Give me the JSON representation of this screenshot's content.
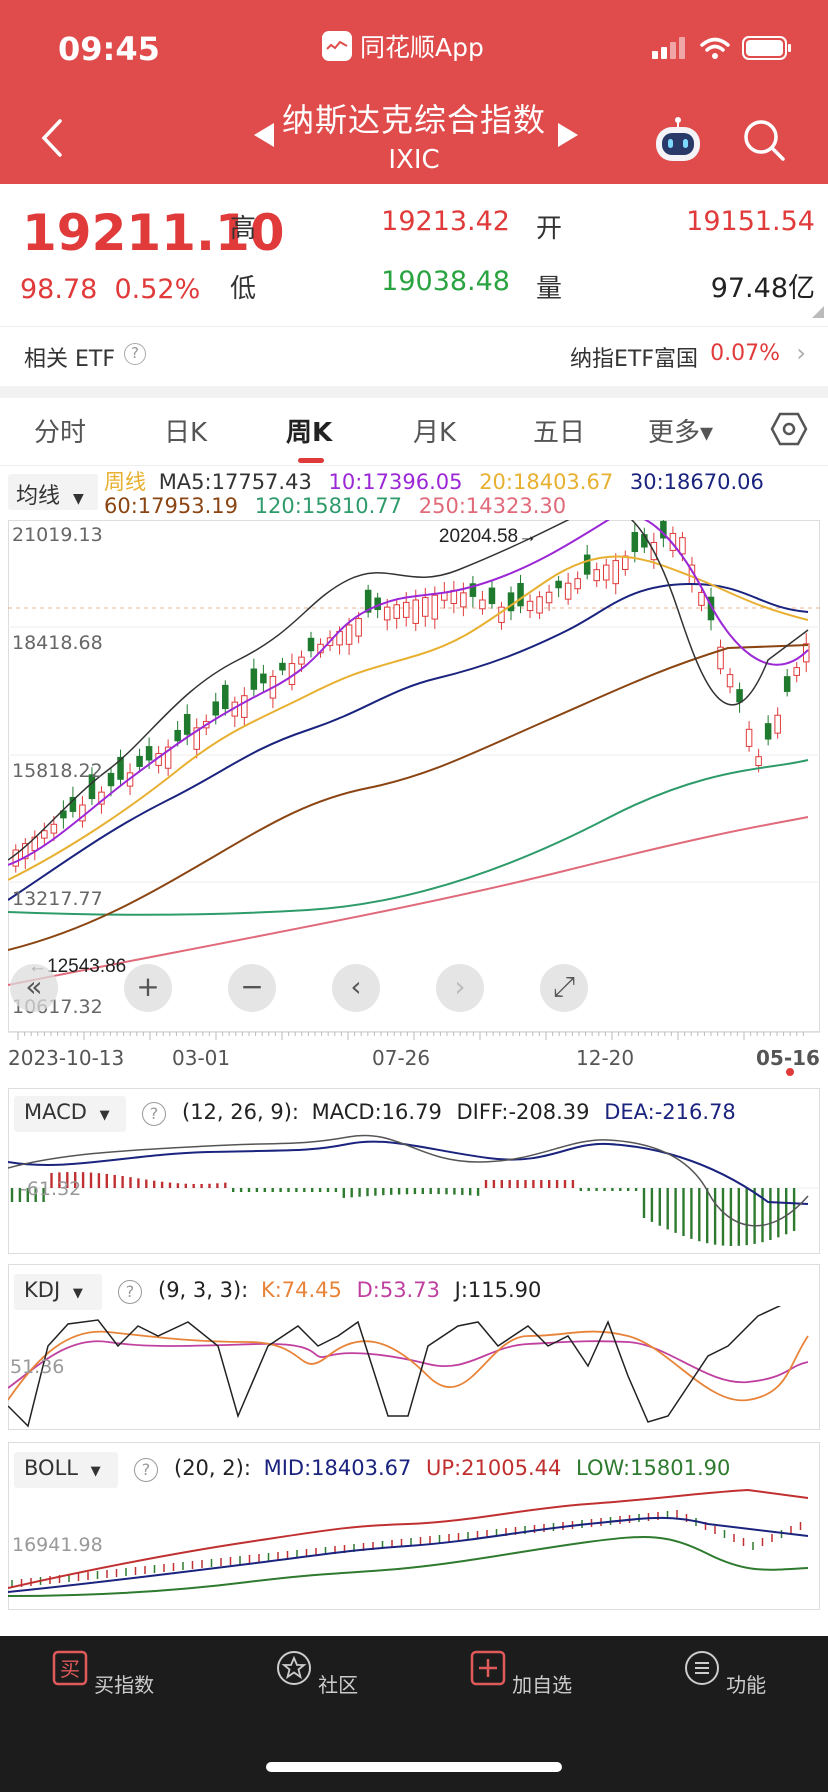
{
  "status": {
    "time": "09:45",
    "source_app": "同花顺App"
  },
  "header": {
    "title": "纳斯达克综合指数",
    "code": "IXIC"
  },
  "quote": {
    "price": "19211.10",
    "change": "98.78",
    "change_pct": "0.52%",
    "high_label": "高",
    "high": "19213.42",
    "low_label": "低",
    "low": "19038.48",
    "open_label": "开",
    "open": "19151.54",
    "volume_label": "量",
    "volume": "97.48亿"
  },
  "etf": {
    "label": "相关 ETF",
    "help": "?",
    "name": "纳指ETF富国",
    "pct": "0.07%"
  },
  "tabs": [
    {
      "label": "分时",
      "active": false
    },
    {
      "label": "日K",
      "active": false
    },
    {
      "label": "周K",
      "active": true
    },
    {
      "label": "月K",
      "active": false
    },
    {
      "label": "五日",
      "active": false
    },
    {
      "label": "更多▾",
      "active": false
    }
  ],
  "ma_legend": {
    "selector": "均线",
    "period": "周线",
    "ma5": "MA5:17757.43",
    "ma10": "10:17396.05",
    "ma20": "20:18403.67",
    "ma30": "30:18670.06",
    "ma60": "60:17953.19",
    "ma120": "120:15810.77",
    "ma250": "250:14323.30"
  },
  "kline": {
    "y_labels": [
      "21019.13",
      "18418.68",
      "15818.22",
      "13217.77",
      "10617.32"
    ],
    "x_labels": [
      "2023-10-13",
      "03-01",
      "07-26",
      "12-20",
      "05-16"
    ],
    "max_marker": "20204.58→",
    "min_marker": "←12543.86",
    "y_range": [
      10617.32,
      21019.13
    ],
    "colors": {
      "up": "#e03a3a",
      "down": "#1f7a2e",
      "ma5": "#333333",
      "ma10": "#9b27d6",
      "ma20": "#e8b030",
      "ma30": "#1a237e",
      "ma60": "#8b4513",
      "ma120": "#2e9b6a",
      "ma250": "#e06a7a"
    },
    "controls": [
      "«",
      "+",
      "−",
      "‹",
      "›",
      "⤢"
    ]
  },
  "macd": {
    "selector": "MACD",
    "help": "?",
    "params": "(12, 26, 9):",
    "macd": "MACD:16.79",
    "diff": "DIFF:-208.39",
    "dea": "DEA:-216.78",
    "axis_label": "-61.32"
  },
  "kdj": {
    "selector": "KDJ",
    "help": "?",
    "params": "(9, 3, 3):",
    "k": "K:74.45",
    "d": "D:53.73",
    "j": "J:115.90",
    "axis_label": "51.36"
  },
  "boll": {
    "selector": "BOLL",
    "help": "?",
    "params": "(20, 2):",
    "mid": "MID:18403.67",
    "up": "UP:21005.44",
    "low": "LOW:15801.90",
    "axis_label": "16941.98"
  },
  "bottom_nav": [
    {
      "label": "买指数",
      "icon": "buy-icon"
    },
    {
      "label": "社区",
      "icon": "community-icon"
    },
    {
      "label": "加自选",
      "icon": "add-watchlist-icon"
    },
    {
      "label": "功能",
      "icon": "menu-icon"
    }
  ]
}
